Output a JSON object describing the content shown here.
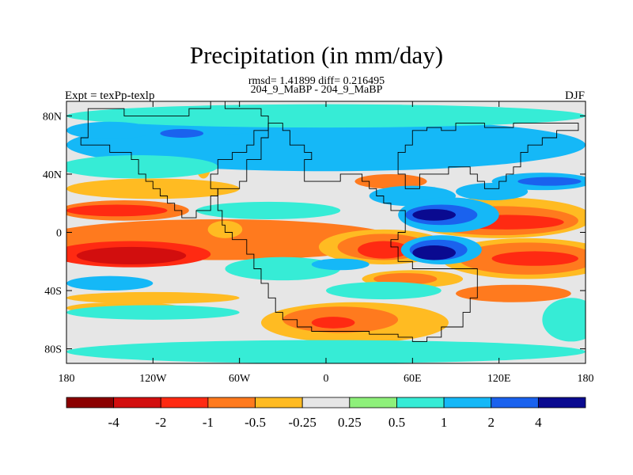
{
  "chart_data": {
    "type": "heatmap",
    "title": "Precipitation (in mm/day)",
    "subtitle_line1": "rmsd= 1.41899 diff= 0.216495",
    "subtitle_line2": "204_9_MaBP - 204_9_MaBP",
    "left_string": "Expt = texPp-texlp",
    "right_string": "DJF",
    "x_ticks": [
      "180",
      "120W",
      "60W",
      "0",
      "60E",
      "120E",
      "180"
    ],
    "x_tick_values": [
      -180,
      -120,
      -60,
      0,
      60,
      120,
      180
    ],
    "y_ticks": [
      "80N",
      "40N",
      "0",
      "40S",
      "80S"
    ],
    "y_tick_values": [
      80,
      40,
      0,
      -40,
      -80
    ],
    "xlim": [
      -180,
      180
    ],
    "ylim": [
      -90,
      90
    ],
    "colorbar_levels": [
      "-4",
      "-2",
      "-1",
      "-0.5",
      "-0.25",
      "0.25",
      "0.5",
      "1",
      "2",
      "4"
    ],
    "colorbar_colors": [
      "#8b0000",
      "#d20e0e",
      "#ff2a12",
      "#ff7a1e",
      "#ffbb22",
      "#e6e6e6",
      "#8ef07a",
      "#36ecd6",
      "#15b8f7",
      "#1a62ee",
      "#0a0a90"
    ],
    "anomaly_regions": [
      {
        "cls": 3,
        "lon": -75,
        "lat": -5,
        "rx": 125,
        "ry": 14
      },
      {
        "cls": 2,
        "lon": -135,
        "lat": -15,
        "rx": 55,
        "ry": 9
      },
      {
        "cls": 1,
        "lon": -135,
        "lat": -16,
        "rx": 38,
        "ry": 6
      },
      {
        "cls": 4,
        "lon": -120,
        "lat": 30,
        "rx": 60,
        "ry": 7
      },
      {
        "cls": 3,
        "lon": -140,
        "lat": 15,
        "rx": 45,
        "ry": 7
      },
      {
        "cls": 2,
        "lon": -145,
        "lat": 15,
        "rx": 35,
        "ry": 4
      },
      {
        "cls": 4,
        "lon": -120,
        "lat": -45,
        "rx": 60,
        "ry": 4
      },
      {
        "cls": 4,
        "lon": -140,
        "lat": -52,
        "rx": 40,
        "ry": 4
      },
      {
        "cls": 4,
        "lon": 20,
        "lat": -62,
        "rx": 65,
        "ry": 14
      },
      {
        "cls": 3,
        "lon": 10,
        "lat": -60,
        "rx": 40,
        "ry": 9
      },
      {
        "cls": 2,
        "lon": 5,
        "lat": -62,
        "rx": 15,
        "ry": 4
      },
      {
        "cls": 4,
        "lon": 40,
        "lat": -10,
        "rx": 45,
        "ry": 12
      },
      {
        "cls": 3,
        "lon": 40,
        "lat": -10,
        "rx": 32,
        "ry": 9
      },
      {
        "cls": 2,
        "lon": 40,
        "lat": -12,
        "rx": 18,
        "ry": 6
      },
      {
        "cls": 4,
        "lon": 120,
        "lat": 10,
        "rx": 65,
        "ry": 14
      },
      {
        "cls": 3,
        "lon": 120,
        "lat": 8,
        "rx": 55,
        "ry": 10
      },
      {
        "cls": 2,
        "lon": 125,
        "lat": 7,
        "rx": 40,
        "ry": 5
      },
      {
        "cls": 4,
        "lon": 140,
        "lat": -18,
        "rx": 60,
        "ry": 14
      },
      {
        "cls": 3,
        "lon": 140,
        "lat": -18,
        "rx": 48,
        "ry": 11
      },
      {
        "cls": 2,
        "lon": 145,
        "lat": -18,
        "rx": 30,
        "ry": 5
      },
      {
        "cls": 3,
        "lon": 130,
        "lat": -42,
        "rx": 40,
        "ry": 6
      },
      {
        "cls": 3,
        "lon": 45,
        "lat": 35,
        "rx": 25,
        "ry": 5
      },
      {
        "cls": 4,
        "lon": 60,
        "lat": -32,
        "rx": 35,
        "ry": 6
      },
      {
        "cls": 3,
        "lon": 55,
        "lat": -32,
        "rx": 22,
        "ry": 4
      },
      {
        "cls": 4,
        "lon": -85,
        "lat": 45,
        "rx": 5,
        "ry": 8
      },
      {
        "cls": 4,
        "lon": -70,
        "lat": 2,
        "rx": 12,
        "ry": 6
      },
      {
        "cls": 8,
        "lon": 0,
        "lat": 60,
        "rx": 180,
        "ry": 18
      },
      {
        "cls": 7,
        "lon": -130,
        "lat": 45,
        "rx": 55,
        "ry": 8
      },
      {
        "cls": 8,
        "lon": -80,
        "lat": 75,
        "rx": 50,
        "ry": 8
      },
      {
        "cls": 7,
        "lon": 0,
        "lat": 80,
        "rx": 180,
        "ry": 8
      },
      {
        "cls": 8,
        "lon": 60,
        "lat": 25,
        "rx": 30,
        "ry": 7
      },
      {
        "cls": 7,
        "lon": -40,
        "lat": 15,
        "rx": 50,
        "ry": 6
      },
      {
        "cls": 8,
        "lon": 85,
        "lat": 12,
        "rx": 35,
        "ry": 12
      },
      {
        "cls": 9,
        "lon": 80,
        "lat": 12,
        "rx": 25,
        "ry": 7
      },
      {
        "cls": 10,
        "lon": 75,
        "lat": 12,
        "rx": 15,
        "ry": 4
      },
      {
        "cls": 8,
        "lon": 80,
        "lat": -12,
        "rx": 28,
        "ry": 10
      },
      {
        "cls": 9,
        "lon": 78,
        "lat": -12,
        "rx": 20,
        "ry": 7
      },
      {
        "cls": 10,
        "lon": 75,
        "lat": -14,
        "rx": 15,
        "ry": 5
      },
      {
        "cls": 8,
        "lon": 150,
        "lat": 35,
        "rx": 35,
        "ry": 6
      },
      {
        "cls": 9,
        "lon": 155,
        "lat": 35,
        "rx": 22,
        "ry": 3
      },
      {
        "cls": 8,
        "lon": 115,
        "lat": 28,
        "rx": 25,
        "ry": 6
      },
      {
        "cls": 8,
        "lon": -150,
        "lat": 70,
        "rx": 30,
        "ry": 6
      },
      {
        "cls": 9,
        "lon": -100,
        "lat": 68,
        "rx": 15,
        "ry": 3
      },
      {
        "cls": 7,
        "lon": -30,
        "lat": -25,
        "rx": 40,
        "ry": 8
      },
      {
        "cls": 8,
        "lon": 10,
        "lat": -22,
        "rx": 20,
        "ry": 4
      },
      {
        "cls": 7,
        "lon": 40,
        "lat": -40,
        "rx": 40,
        "ry": 6
      },
      {
        "cls": 7,
        "lon": -120,
        "lat": -55,
        "rx": 60,
        "ry": 5
      },
      {
        "cls": 7,
        "lon": 0,
        "lat": -82,
        "rx": 180,
        "ry": 8
      },
      {
        "cls": 8,
        "lon": -150,
        "lat": -35,
        "rx": 30,
        "ry": 5
      },
      {
        "cls": 7,
        "lon": 170,
        "lat": -60,
        "rx": 20,
        "ry": 15
      }
    ],
    "land_outlines": [
      {
        "name": "north-west-land",
        "points": [
          [
            -165,
            85
          ],
          [
            -140,
            85
          ],
          [
            -140,
            80
          ],
          [
            -95,
            85
          ],
          [
            -90,
            85
          ],
          [
            -80,
            90
          ],
          [
            -70,
            85
          ],
          [
            -45,
            85
          ],
          [
            -45,
            80
          ],
          [
            -40,
            75
          ],
          [
            -40,
            70
          ],
          [
            -50,
            65
          ],
          [
            -50,
            60
          ],
          [
            -55,
            55
          ],
          [
            -65,
            50
          ],
          [
            -75,
            40
          ],
          [
            -80,
            35
          ],
          [
            -80,
            30
          ],
          [
            -75,
            25
          ],
          [
            -80,
            15
          ],
          [
            -90,
            10
          ],
          [
            -95,
            10
          ],
          [
            -100,
            15
          ],
          [
            -105,
            20
          ],
          [
            -110,
            25
          ],
          [
            -115,
            30
          ],
          [
            -120,
            35
          ],
          [
            -125,
            40
          ],
          [
            -130,
            50
          ],
          [
            -135,
            55
          ],
          [
            -150,
            60
          ],
          [
            -165,
            60
          ],
          [
            -170,
            65
          ],
          [
            -165,
            70
          ],
          [
            -165,
            85
          ]
        ]
      },
      {
        "name": "south-land",
        "points": [
          [
            -75,
            30
          ],
          [
            -60,
            35
          ],
          [
            -55,
            50
          ],
          [
            -45,
            65
          ],
          [
            -40,
            75
          ],
          [
            -30,
            70
          ],
          [
            -25,
            60
          ],
          [
            -15,
            55
          ],
          [
            -10,
            50
          ],
          [
            -15,
            45
          ],
          [
            -15,
            35
          ],
          [
            -5,
            35
          ],
          [
            10,
            40
          ],
          [
            25,
            35
          ],
          [
            30,
            30
          ],
          [
            35,
            25
          ],
          [
            40,
            20
          ],
          [
            45,
            15
          ],
          [
            50,
            15
          ],
          [
            55,
            10
          ],
          [
            55,
            0
          ],
          [
            50,
            -5
          ],
          [
            45,
            -10
          ],
          [
            50,
            -20
          ],
          [
            60,
            -25
          ],
          [
            70,
            -25
          ],
          [
            80,
            -25
          ],
          [
            90,
            -25
          ],
          [
            100,
            -25
          ],
          [
            105,
            -30
          ],
          [
            105,
            -45
          ],
          [
            100,
            -55
          ],
          [
            95,
            -65
          ],
          [
            80,
            -72
          ],
          [
            70,
            -75
          ],
          [
            60,
            -72
          ],
          [
            50,
            -70
          ],
          [
            40,
            -70
          ],
          [
            30,
            -68
          ],
          [
            20,
            -68
          ],
          [
            10,
            -68
          ],
          [
            0,
            -68
          ],
          [
            -10,
            -65
          ],
          [
            -20,
            -60
          ],
          [
            -30,
            -55
          ],
          [
            -35,
            -45
          ],
          [
            -40,
            -35
          ],
          [
            -45,
            -25
          ],
          [
            -50,
            -15
          ],
          [
            -55,
            -5
          ],
          [
            -65,
            0
          ],
          [
            -70,
            5
          ],
          [
            -72,
            15
          ],
          [
            -75,
            25
          ],
          [
            -75,
            30
          ]
        ]
      },
      {
        "name": "east-land",
        "points": [
          [
            55,
            30
          ],
          [
            65,
            40
          ],
          [
            75,
            40
          ],
          [
            85,
            45
          ],
          [
            95,
            45
          ],
          [
            100,
            40
          ],
          [
            105,
            35
          ],
          [
            110,
            30
          ],
          [
            115,
            30
          ],
          [
            120,
            35
          ],
          [
            125,
            40
          ],
          [
            130,
            45
          ],
          [
            135,
            55
          ],
          [
            140,
            60
          ],
          [
            150,
            65
          ],
          [
            160,
            70
          ],
          [
            175,
            70
          ],
          [
            175,
            75
          ],
          [
            150,
            75
          ],
          [
            130,
            72
          ],
          [
            120,
            72
          ],
          [
            110,
            75
          ],
          [
            100,
            75
          ],
          [
            90,
            70
          ],
          [
            80,
            72
          ],
          [
            70,
            70
          ],
          [
            60,
            70
          ],
          [
            60,
            60
          ],
          [
            55,
            55
          ],
          [
            50,
            50
          ],
          [
            50,
            40
          ],
          [
            55,
            30
          ]
        ]
      }
    ]
  }
}
